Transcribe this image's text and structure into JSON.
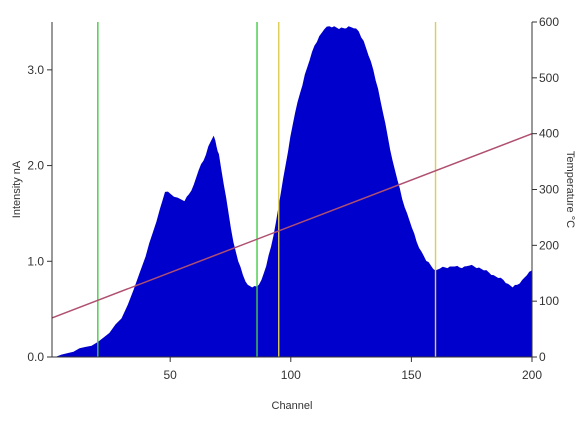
{
  "chart_data": {
    "type": "area",
    "xlabel": "Channel",
    "ylabel": "Intensity nA",
    "y2label": "Temperature °C",
    "xlim": [
      1,
      200
    ],
    "ylim": [
      0,
      3.5
    ],
    "y2lim": [
      0,
      600
    ],
    "x_ticks": [
      50,
      100,
      150,
      200
    ],
    "x_tick_labels": [
      "50",
      "100",
      "150",
      "200"
    ],
    "y_ticks": [
      0,
      1,
      2,
      3
    ],
    "y_tick_labels": [
      "0.0",
      "1.0",
      "2.0",
      "3.0"
    ],
    "y2_ticks": [
      0,
      100,
      200,
      300,
      400,
      500,
      600
    ],
    "y2_tick_labels": [
      "0",
      "100",
      "200",
      "300",
      "400",
      "500",
      "600"
    ],
    "grid": false,
    "series": [
      {
        "axis": "left",
        "color": "#0000cc",
        "x": [
          1,
          5,
          10,
          15,
          20,
          25,
          30,
          35,
          40,
          43,
          46,
          48,
          50,
          53,
          56,
          58,
          60,
          62,
          64,
          66,
          68,
          69,
          70,
          72,
          74,
          76,
          78,
          80,
          82,
          84,
          86,
          88,
          90,
          92,
          94,
          96,
          98,
          100,
          102,
          104,
          106,
          108,
          110,
          112,
          114,
          116,
          118,
          120,
          122,
          124,
          126,
          128,
          130,
          132,
          134,
          136,
          138,
          140,
          142,
          144,
          146,
          148,
          150,
          152,
          154,
          156,
          158,
          160,
          162,
          164,
          166,
          168,
          170,
          172,
          174,
          176,
          178,
          180,
          182,
          184,
          186,
          188,
          190,
          192,
          194,
          196,
          198,
          200
        ],
        "values": [
          0.0,
          0.02,
          0.05,
          0.1,
          0.15,
          0.25,
          0.4,
          0.7,
          1.05,
          1.3,
          1.55,
          1.72,
          1.7,
          1.66,
          1.62,
          1.7,
          1.8,
          1.95,
          2.05,
          2.2,
          2.3,
          2.2,
          2.12,
          1.8,
          1.5,
          1.2,
          1.0,
          0.85,
          0.75,
          0.72,
          0.73,
          0.8,
          0.95,
          1.15,
          1.4,
          1.7,
          2.0,
          2.3,
          2.55,
          2.75,
          2.95,
          3.1,
          3.25,
          3.35,
          3.42,
          3.45,
          3.45,
          3.42,
          3.43,
          3.45,
          3.43,
          3.4,
          3.3,
          3.15,
          3.0,
          2.8,
          2.55,
          2.3,
          2.05,
          1.85,
          1.65,
          1.5,
          1.35,
          1.2,
          1.1,
          1.0,
          0.95,
          0.9,
          0.92,
          0.93,
          0.94,
          0.94,
          0.93,
          0.94,
          0.95,
          0.94,
          0.93,
          0.9,
          0.88,
          0.85,
          0.82,
          0.8,
          0.76,
          0.72,
          0.75,
          0.8,
          0.85,
          0.9
        ]
      },
      {
        "axis": "right",
        "type": "line",
        "color": "#b05070",
        "x": [
          1,
          200
        ],
        "values": [
          70,
          400
        ]
      }
    ],
    "vertical_markers": [
      {
        "x": 20,
        "color": "#44cc44"
      },
      {
        "x": 86,
        "color": "#44cc44"
      },
      {
        "x": 95,
        "color": "#ddcc55"
      },
      {
        "x": 160,
        "color": "#ddcc55"
      }
    ]
  }
}
